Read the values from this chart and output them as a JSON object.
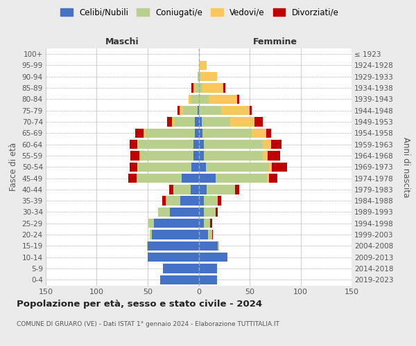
{
  "age_groups": [
    "0-4",
    "5-9",
    "10-14",
    "15-19",
    "20-24",
    "25-29",
    "30-34",
    "35-39",
    "40-44",
    "45-49",
    "50-54",
    "55-59",
    "60-64",
    "65-69",
    "70-74",
    "75-79",
    "80-84",
    "85-89",
    "90-94",
    "95-99",
    "100+"
  ],
  "birth_years": [
    "2019-2023",
    "2014-2018",
    "2009-2013",
    "2004-2008",
    "1999-2003",
    "1994-1998",
    "1989-1993",
    "1984-1988",
    "1979-1983",
    "1974-1978",
    "1969-1973",
    "1964-1968",
    "1959-1963",
    "1954-1958",
    "1949-1953",
    "1944-1948",
    "1939-1943",
    "1934-1938",
    "1929-1933",
    "1924-1928",
    "≤ 1923"
  ],
  "maschi_celibi": [
    38,
    35,
    50,
    50,
    46,
    44,
    28,
    18,
    8,
    17,
    7,
    5,
    5,
    4,
    4,
    1,
    0,
    0,
    0,
    0,
    0
  ],
  "maschi_coniugati": [
    0,
    0,
    0,
    1,
    2,
    5,
    12,
    14,
    17,
    43,
    52,
    52,
    54,
    48,
    20,
    14,
    8,
    3,
    1,
    0,
    0
  ],
  "maschi_vedovi": [
    0,
    0,
    0,
    0,
    0,
    0,
    0,
    0,
    0,
    1,
    1,
    1,
    1,
    2,
    2,
    4,
    2,
    2,
    0,
    0,
    0
  ],
  "maschi_divorziati": [
    0,
    0,
    0,
    0,
    0,
    0,
    0,
    4,
    4,
    8,
    8,
    9,
    8,
    8,
    5,
    2,
    0,
    2,
    0,
    0,
    0
  ],
  "femmine_nubili": [
    18,
    18,
    28,
    19,
    9,
    5,
    5,
    5,
    8,
    17,
    7,
    5,
    5,
    4,
    3,
    0,
    0,
    0,
    0,
    0,
    0
  ],
  "femmine_coniugate": [
    0,
    0,
    0,
    1,
    4,
    6,
    12,
    14,
    28,
    50,
    62,
    58,
    58,
    48,
    28,
    22,
    10,
    4,
    2,
    0,
    0
  ],
  "femmine_vedove": [
    0,
    0,
    0,
    0,
    0,
    0,
    0,
    0,
    0,
    2,
    3,
    5,
    8,
    14,
    24,
    28,
    28,
    20,
    16,
    8,
    1
  ],
  "femmine_divorziate": [
    0,
    0,
    0,
    0,
    1,
    2,
    2,
    3,
    4,
    8,
    15,
    12,
    10,
    5,
    8,
    2,
    2,
    2,
    0,
    0,
    0
  ],
  "colors": {
    "celibi_nubili": "#4472C4",
    "coniugati": "#B8D08C",
    "vedovi": "#FAC85A",
    "divorziati": "#C00000"
  },
  "legend_labels": [
    "Celibi/Nubili",
    "Coniugati/e",
    "Vedovi/e",
    "Divorziati/e"
  ],
  "title": "Popolazione per età, sesso e stato civile - 2024",
  "subtitle": "COMUNE DI GRUARO (VE) - Dati ISTAT 1° gennaio 2024 - Elaborazione TUTTITALIA.IT",
  "label_maschi": "Maschi",
  "label_femmine": "Femmine",
  "ylabel_left": "Fasce di età",
  "ylabel_right": "Anni di nascita",
  "xlim": 150,
  "bg_color": "#ebebeb",
  "plot_bg": "#ffffff"
}
